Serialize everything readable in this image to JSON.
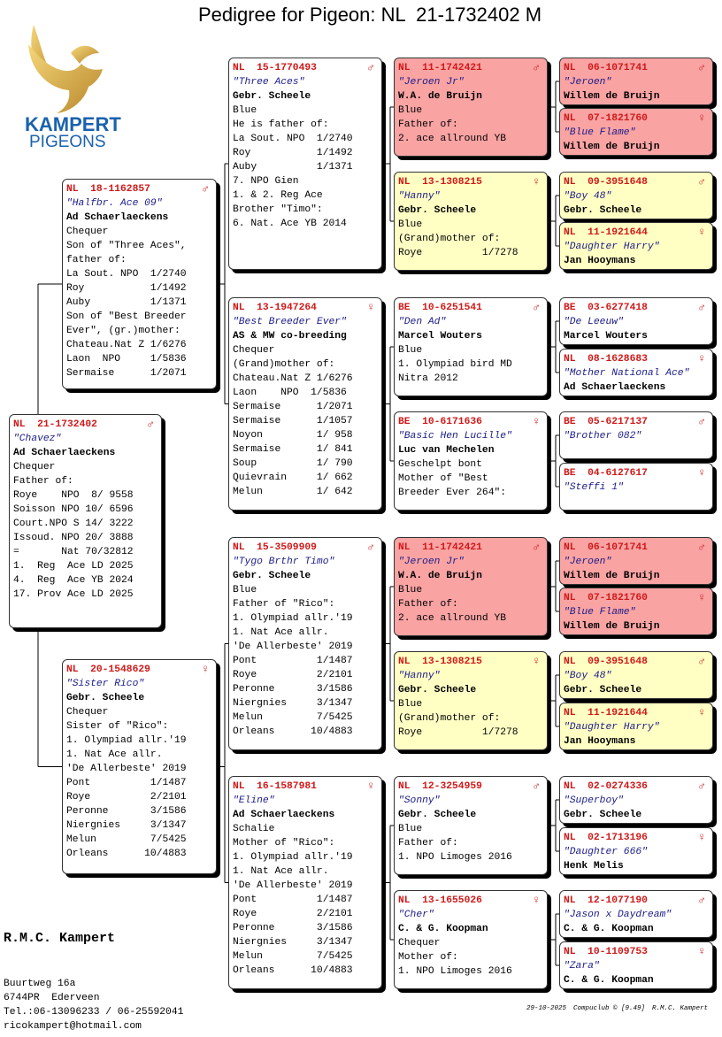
{
  "header": {
    "title": "Pedigree for Pigeon: NL  21-1732402 M"
  },
  "logo": {
    "line1": "KAMPERT",
    "line2": "PIGEONS"
  },
  "cards": [
    {
      "ring": "NL  21-1732402",
      "sex": "♂",
      "name": "\"Chavez\"",
      "owner": "Ad Schaerlaeckens",
      "lines": [
        "Chequer",
        "Father of:",
        "Roye    NPO  8/ 9558",
        "Soisson NPO 10/ 6596",
        "Court.NPO S 14/ 3222",
        "Issoud. NPO 20/ 3888",
        "=       Nat 70/32812",
        "1.  Reg  Ace LD 2025",
        "4.  Reg  Ace YB 2024",
        "17. Prov Ace LD 2025"
      ]
    },
    {
      "ring": "NL  18-1162857",
      "sex": "♂",
      "name": "\"Halfbr. Ace 09\"",
      "owner": "Ad Schaerlaeckens",
      "lines": [
        "Chequer",
        "Son of \"Three Aces\",",
        "father of:",
        "La Sout. NPO  1/2740",
        "Roy           1/1492",
        "Auby          1/1371",
        "Son of \"Best Breeder",
        "Ever\", (gr.)mother:",
        "Chateau.Nat Z 1/6276",
        "Laon  NPO     1/5836",
        "Sermaise      1/2071"
      ]
    },
    {
      "ring": "NL  20-1548629",
      "sex": "♀",
      "name": "\"Sister Rico\"",
      "owner": "Gebr. Scheele",
      "lines": [
        "Chequer",
        "Sister of \"Rico\":",
        "1. Olympiad allr.'19",
        "1. Nat Ace allr.",
        "'De Allerbeste' 2019",
        "Pont          1/1487",
        "Roye          2/2101",
        "Peronne       3/1586",
        "Niergnies     3/1347",
        "Melun         7/5425",
        "Orleans      10/4883"
      ]
    },
    {
      "ring": "NL  15-1770493",
      "sex": "♂",
      "name": "\"Three Aces\"",
      "owner": "Gebr. Scheele",
      "lines": [
        "Blue",
        "He is father of:",
        "La Sout. NPO  1/2740",
        "Roy           1/1492",
        "Auby          1/1371",
        "7. NPO Gien",
        "1. & 2. Reg Ace",
        "Brother \"Timo\":",
        "6. Nat. Ace YB 2014"
      ]
    },
    {
      "ring": "NL  13-1947264",
      "sex": "♀",
      "name": "\"Best Breeder Ever\"",
      "owner": "AS & MW co-breeding",
      "lines": [
        "Chequer",
        "(Grand)mother of:",
        "Chateau.Nat Z 1/6276",
        "Laon    NPO  1/5836",
        "Sermaise      1/2071",
        "Sermaise      1/1057",
        "Noyon         1/ 958",
        "Sermaise      1/ 841",
        "Soup          1/ 790",
        "Quievrain     1/ 662",
        "Melun         1/ 642"
      ]
    },
    {
      "ring": "NL  15-3509909",
      "sex": "♂",
      "name": "\"Tygo Brthr Timo\"",
      "owner": "Gebr. Scheele",
      "lines": [
        "Blue",
        "Father of \"Rico\":",
        "1. Olympiad allr.'19",
        "1. Nat Ace allr.",
        "'De Allerbeste' 2019",
        "Pont          1/1487",
        "Roye          2/2101",
        "Peronne       3/1586",
        "Niergnies     3/1347",
        "Melun         7/5425",
        "Orleans      10/4883"
      ]
    },
    {
      "ring": "NL  16-1587981",
      "sex": "♀",
      "name": "\"Eline\"",
      "owner": "Ad Schaerlaeckens",
      "lines": [
        "Schalie",
        "Mother of \"Rico\":",
        "1. Olympiad allr.'19",
        "1. Nat Ace allr.",
        "'De Allerbeste' 2019",
        "Pont          1/1487",
        "Roye          2/2101",
        "Peronne       3/1586",
        "Niergnies     3/1347",
        "Melun         7/5425",
        "Orleans      10/4883"
      ]
    },
    {
      "ring": "NL  11-1742421",
      "sex": "♂",
      "name": "\"Jeroen Jr\"",
      "owner": "W.A. de Bruijn",
      "lines": [
        "Blue",
        "Father of:",
        "2. ace allround YB"
      ],
      "color": "#f9a3a3"
    },
    {
      "ring": "NL  13-1308215",
      "sex": "♀",
      "name": "\"Hanny\"",
      "owner": "Gebr. Scheele",
      "lines": [
        "Blue",
        "(Grand)mother of:",
        "Roye          1/7278"
      ],
      "color": "#ffffc4"
    },
    {
      "ring": "BE  10-6251541",
      "sex": "♂",
      "name": "\"Den Ad\"",
      "owner": "Marcel Wouters",
      "lines": [
        "Blue",
        "1. Olympiad bird MD",
        "Nitra 2012"
      ]
    },
    {
      "ring": "BE  10-6171636",
      "sex": "♀",
      "name": "\"Basic Hen Lucille\"",
      "owner": "Luc van Mechelen",
      "lines": [
        "Geschelpt bont",
        "Mother of \"Best",
        "Breeder Ever 264\":"
      ]
    },
    {
      "ring": "NL  11-1742421",
      "sex": "♂",
      "name": "\"Jeroen Jr\"",
      "owner": "W.A. de Bruijn",
      "lines": [
        "Blue",
        "Father of:",
        "2. ace allround YB"
      ],
      "color": "#f9a3a3"
    },
    {
      "ring": "NL  13-1308215",
      "sex": "♀",
      "name": "\"Hanny\"",
      "owner": "Gebr. Scheele",
      "lines": [
        "Blue",
        "(Grand)mother of:",
        "Roye          1/7278"
      ],
      "color": "#ffffc4"
    },
    {
      "ring": "NL  12-3254959",
      "sex": "♂",
      "name": "\"Sonny\"",
      "owner": "Gebr. Scheele",
      "lines": [
        "Blue",
        "Father of:",
        "1. NPO Limoges 2016"
      ]
    },
    {
      "ring": "NL  13-1655026",
      "sex": "♀",
      "name": "\"Cher\"",
      "owner": "C. & G. Koopman",
      "lines": [
        "Chequer",
        "Mother of:",
        "1. NPO Limoges 2016"
      ]
    },
    {
      "ring": "NL  06-1071741",
      "sex": "♂",
      "name": "\"Jeroen\"",
      "owner": "Willem de Bruijn",
      "color": "#f9a3a3"
    },
    {
      "ring": "NL  07-1821760",
      "sex": "♀",
      "name": "\"Blue Flame\"",
      "owner": "Willem de Bruijn",
      "color": "#f9a3a3"
    },
    {
      "ring": "NL  09-3951648",
      "sex": "♂",
      "name": "\"Boy 48\"",
      "owner": "Gebr. Scheele",
      "color": "#ffffc4"
    },
    {
      "ring": "NL  11-1921644",
      "sex": "♀",
      "name": "\"Daughter Harry\"",
      "owner": "Jan Hooymans",
      "color": "#ffffc4"
    },
    {
      "ring": "BE  03-6277418",
      "sex": "♂",
      "name": "\"De Leeuw\"",
      "owner": "Marcel Wouters"
    },
    {
      "ring": "NL  08-1628683",
      "sex": "♀",
      "name": "\"Mother National Ace\"",
      "owner": "Ad Schaerlaeckens"
    },
    {
      "ring": "BE  05-6217137",
      "sex": "♂",
      "name": "\"Brother 082\""
    },
    {
      "ring": "BE  04-6127617",
      "sex": "♀",
      "name": "\"Steffi 1\""
    },
    {
      "ring": "NL  06-1071741",
      "sex": "♂",
      "name": "\"Jeroen\"",
      "owner": "Willem de Bruijn",
      "color": "#f9a3a3"
    },
    {
      "ring": "NL  07-1821760",
      "sex": "♀",
      "name": "\"Blue Flame\"",
      "owner": "Willem de Bruijn",
      "color": "#f9a3a3"
    },
    {
      "ring": "NL  09-3951648",
      "sex": "♂",
      "name": "\"Boy 48\"",
      "owner": "Gebr. Scheele",
      "color": "#ffffc4"
    },
    {
      "ring": "NL  11-1921644",
      "sex": "♀",
      "name": "\"Daughter Harry\"",
      "owner": "Jan Hooymans",
      "color": "#ffffc4"
    },
    {
      "ring": "NL  02-0274336",
      "sex": "♂",
      "name": "\"Superboy\"",
      "owner": "Gebr. Scheele"
    },
    {
      "ring": "NL  02-1713196",
      "sex": "♀",
      "name": "\"Daughter 666\"",
      "owner": "Henk Melis"
    },
    {
      "ring": "NL  12-1077190",
      "sex": "♂",
      "name": "\"Jason x Daydream\"",
      "owner": "C. & G. Koopman"
    },
    {
      "ring": "NL  10-1109753",
      "sex": "♀",
      "name": "\"Zara\"",
      "owner": "C. & G. Koopman"
    }
  ],
  "breeder": {
    "name": "R.M.C. Kampert",
    "lines": [
      "Buurtweg 16a",
      "6744PR  Ederveen",
      "Tel.:06-13096233 / 06-25592041",
      "ricokampert@hotmail.com"
    ]
  },
  "footer": {
    "date": "29-10-2025",
    "software": "Compuclub © [9.49]",
    "author": "R.M.C. Kampert"
  }
}
